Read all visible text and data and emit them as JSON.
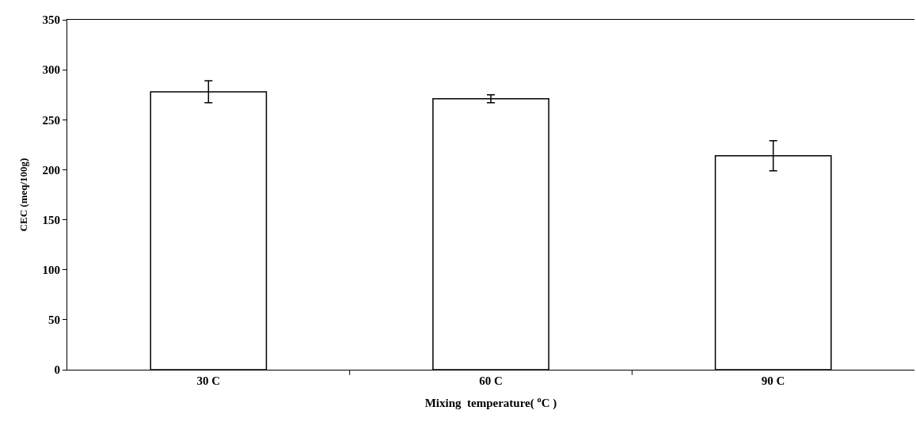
{
  "chart_data": {
    "type": "bar",
    "xlabel": "Mixing  temperature( $^{o}$C )",
    "ylabel": "CEC (meq/100g)",
    "categories": [
      "30 C",
      "60 C",
      "90 C"
    ],
    "values": [
      278,
      271,
      214
    ],
    "errors": [
      11,
      4,
      15
    ],
    "color": "#ffffff",
    "ylim": [
      0,
      350
    ],
    "yticks": [
      0,
      50,
      100,
      150,
      200,
      250,
      300,
      350
    ]
  }
}
